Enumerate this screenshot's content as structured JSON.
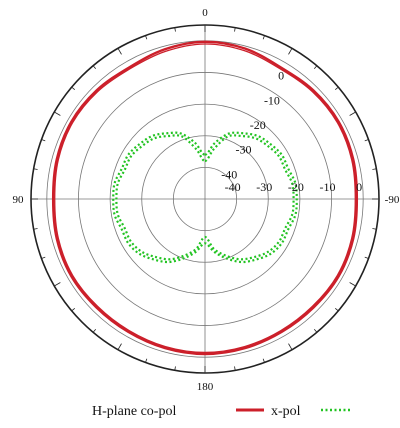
{
  "chart_data": {
    "type": "polar-line",
    "title": "",
    "angle_labels": [
      {
        "angle": 0,
        "text": "0"
      },
      {
        "angle": 90,
        "text": "-90"
      },
      {
        "angle": 180,
        "text": "180"
      },
      {
        "angle": 270,
        "text": "90"
      }
    ],
    "radial_ticks": [
      "0",
      "-10",
      "-20",
      "-30",
      "-40"
    ],
    "radial_tick_values": [
      0,
      -10,
      -20,
      -30,
      -40
    ],
    "r_range": [
      -50,
      5
    ],
    "grid": true,
    "legend": {
      "placement": "bottom"
    },
    "colors": {
      "co_pol": "#cc1f2a",
      "x_pol": "#22c322",
      "grid": "#777777",
      "outer": "#222222"
    },
    "series": [
      {
        "name": "H-plane co-pol",
        "style": "solid",
        "angles": [
          0,
          15,
          30,
          45,
          60,
          75,
          90,
          105,
          120,
          135,
          150,
          165,
          180,
          195,
          210,
          225,
          240,
          255,
          270,
          285,
          300,
          315,
          330,
          345
        ],
        "values": [
          -0.3,
          -0.8,
          -2,
          -1.5,
          -1.2,
          -1.5,
          -2,
          -1.5,
          -1.2,
          -1.5,
          -1.5,
          -1.2,
          -1,
          -1.2,
          -1.5,
          -1.5,
          -1.2,
          -1.5,
          -2,
          -1.5,
          -1.2,
          -1.5,
          -2,
          -1
        ]
      },
      {
        "name": "",
        "style": "solid",
        "angles": [
          0,
          15,
          30,
          45,
          60,
          75,
          90,
          105,
          120,
          135,
          150,
          165,
          180,
          195,
          210,
          225,
          240,
          255,
          270,
          285,
          300,
          315,
          330,
          345
        ],
        "values": [
          -1,
          -1.5,
          -2.5,
          -2,
          -1.7,
          -2,
          -2.5,
          -2,
          -1.7,
          -2,
          -2,
          -1.7,
          -1.5,
          -1.7,
          -2,
          -2,
          -1.7,
          -2,
          -2.5,
          -2,
          -1.7,
          -2,
          -2.5,
          -1.7
        ]
      },
      {
        "name": "x-pol",
        "style": "dotted",
        "angles": [
          0,
          10,
          20,
          30,
          40,
          50,
          60,
          70,
          80,
          90,
          100,
          110,
          120,
          130,
          140,
          150,
          160,
          170,
          180,
          190,
          200,
          210,
          220,
          230,
          240,
          250,
          260,
          270,
          280,
          290,
          300,
          310,
          320,
          330,
          340,
          350
        ],
        "values": [
          -36,
          -32,
          -28,
          -26,
          -24,
          -23,
          -22,
          -22,
          -21,
          -21,
          -21,
          -22,
          -22,
          -23,
          -25,
          -27,
          -30,
          -33,
          -36,
          -33,
          -30,
          -27,
          -25,
          -23,
          -22,
          -22,
          -21,
          -21,
          -21,
          -22,
          -22,
          -23,
          -24,
          -26,
          -28,
          -32
        ]
      },
      {
        "name": "",
        "style": "dotted",
        "angles": [
          0,
          10,
          20,
          30,
          40,
          50,
          60,
          70,
          80,
          90,
          100,
          110,
          120,
          130,
          140,
          150,
          160,
          170,
          180,
          190,
          200,
          210,
          220,
          230,
          240,
          250,
          260,
          270,
          280,
          290,
          300,
          310,
          320,
          330,
          340,
          350
        ],
        "values": [
          -38,
          -34,
          -29,
          -27,
          -25,
          -24,
          -23,
          -23,
          -22,
          -22,
          -22,
          -23,
          -23,
          -24,
          -26,
          -28,
          -31,
          -34,
          -38,
          -34,
          -31,
          -28,
          -26,
          -24,
          -23,
          -23,
          -22,
          -22,
          -22,
          -23,
          -23,
          -24,
          -25,
          -27,
          -29,
          -34
        ]
      }
    ]
  },
  "legend": {
    "co_pol_label": "H-plane co-pol",
    "x_pol_label": "x-pol"
  }
}
